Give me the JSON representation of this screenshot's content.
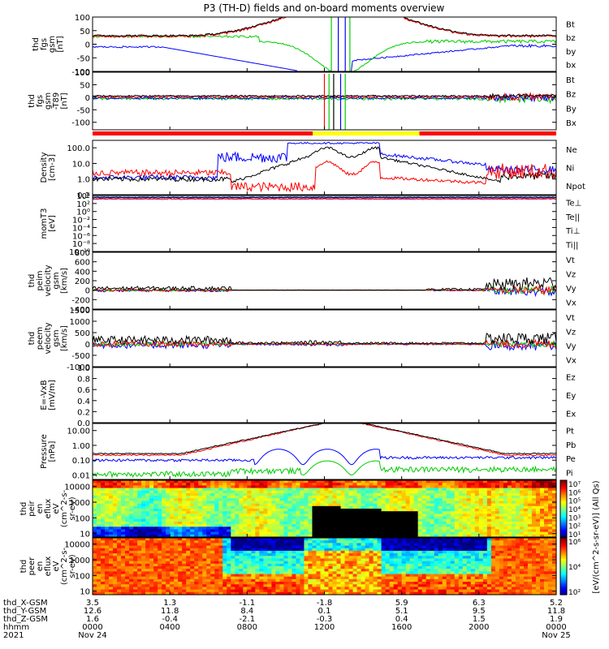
{
  "chart_data": {
    "title": "P3 (TH-D) fields and on-board moments overview",
    "type": "line",
    "panels": [
      {
        "ylabel": [
          "thd",
          "fgs",
          "gsm",
          "[nT]"
        ],
        "ylim": [
          -100,
          100
        ],
        "yticks": [
          {
            "v": 100,
            "l": "100"
          },
          {
            "v": 50,
            "l": "50"
          },
          {
            "v": 0,
            "l": "0"
          },
          {
            "v": -50,
            "l": "-50"
          },
          {
            "v": -100,
            "l": "-100"
          }
        ],
        "series": [
          {
            "name": "Bt",
            "color": "#000000"
          },
          {
            "name": "bz",
            "color": "#ff0000"
          },
          {
            "name": "by",
            "color": "#00cc00"
          },
          {
            "name": "bx",
            "color": "#0000ff"
          }
        ]
      },
      {
        "ylabel": [
          "thd",
          "fgs",
          "gsm",
          "-T89",
          "[nT]"
        ],
        "ylim": [
          -130,
          100
        ],
        "yticks": [
          {
            "v": 100,
            "l": "100"
          },
          {
            "v": 50,
            "l": "50"
          },
          {
            "v": 0,
            "l": "0"
          },
          {
            "v": -50,
            "l": "-50"
          },
          {
            "v": -100,
            "l": "-100"
          }
        ],
        "series": [
          {
            "name": "Bt",
            "color": "#000000"
          },
          {
            "name": "Bz",
            "color": "#ff0000"
          },
          {
            "name": "By",
            "color": "#00cc00"
          },
          {
            "name": "Bx",
            "color": "#0000ff"
          }
        ]
      },
      {
        "ylabel": [
          "Density",
          "[cm-3]"
        ],
        "scale": "log",
        "ylim": [
          0.1,
          300
        ],
        "yticks": [
          {
            "v": 100,
            "l": "100.0"
          },
          {
            "v": 10,
            "l": "10.0"
          },
          {
            "v": 1,
            "l": "1.0"
          },
          {
            "v": 0.1,
            "l": "0.1"
          }
        ],
        "series": [
          {
            "name": "Ne",
            "color": "#ff0000"
          },
          {
            "name": "Ni",
            "color": "#000000"
          },
          {
            "name": "Npot",
            "color": "#0000ff"
          }
        ]
      },
      {
        "ylabel": [
          "momT3",
          "[eV]"
        ],
        "scale": "log",
        "ylim": [
          1e-10,
          10000
        ],
        "yticks": [
          {
            "v": 10000,
            "l": "10⁴"
          },
          {
            "v": 100,
            "l": "10²"
          },
          {
            "v": 1,
            "l": "10⁰"
          },
          {
            "v": 0.01,
            "l": "10⁻²"
          },
          {
            "v": 0.0001,
            "l": "10⁻⁴"
          },
          {
            "v": 1e-06,
            "l": "10⁻⁶"
          },
          {
            "v": 1e-08,
            "l": "10⁻⁸"
          },
          {
            "v": 1e-10,
            "l": "10⁻¹⁰"
          }
        ],
        "series": [
          {
            "name": "Te⊥",
            "color": "#ff0000"
          },
          {
            "name": "Te||",
            "color": "#000000"
          },
          {
            "name": "Ti⊥",
            "color": "#00cc00"
          },
          {
            "name": "Ti||",
            "color": "#00cc00"
          }
        ]
      },
      {
        "ylabel": [
          "thd",
          "peim",
          "velocity",
          "gsm",
          "[km/s]"
        ],
        "ylim": [
          -400,
          800
        ],
        "yticks": [
          {
            "v": 800,
            "l": "800"
          },
          {
            "v": 600,
            "l": "600"
          },
          {
            "v": 400,
            "l": "400"
          },
          {
            "v": 200,
            "l": "200"
          },
          {
            "v": 0,
            "l": "0"
          },
          {
            "v": -200,
            "l": "-200"
          },
          {
            "v": -400,
            "l": "-400"
          }
        ],
        "series": [
          {
            "name": "Vt",
            "color": "#000000"
          },
          {
            "name": "Vz",
            "color": "#ff0000"
          },
          {
            "name": "Vy",
            "color": "#00cc00"
          },
          {
            "name": "Vx",
            "color": "#0000ff"
          }
        ]
      },
      {
        "ylabel": [
          "thd",
          "peem",
          "velocity",
          "gsm",
          "[km/s]"
        ],
        "ylim": [
          -1000,
          1500
        ],
        "yticks": [
          {
            "v": 1500,
            "l": "1500"
          },
          {
            "v": 1000,
            "l": "1000"
          },
          {
            "v": 500,
            "l": "500"
          },
          {
            "v": 0,
            "l": "0"
          },
          {
            "v": -500,
            "l": "-500"
          },
          {
            "v": -1000,
            "l": "-1000"
          }
        ],
        "series": [
          {
            "name": "Vt",
            "color": "#000000"
          },
          {
            "name": "Vz",
            "color": "#ff0000"
          },
          {
            "name": "Vy",
            "color": "#00cc00"
          },
          {
            "name": "Vx",
            "color": "#0000ff"
          }
        ]
      },
      {
        "ylabel": [
          "E=-VxB",
          "[mV/m]"
        ],
        "ylim": [
          0,
          1
        ],
        "yticks": [
          {
            "v": 1,
            "l": "1.0"
          },
          {
            "v": 0.8,
            "l": "0.8"
          },
          {
            "v": 0.6,
            "l": "0.6"
          },
          {
            "v": 0.4,
            "l": "0.4"
          },
          {
            "v": 0.2,
            "l": "0.2"
          },
          {
            "v": 0,
            "l": "0.0"
          }
        ],
        "series": [
          {
            "name": "Ez",
            "color": "#ff0000"
          },
          {
            "name": "Ey",
            "color": "#00cc00"
          },
          {
            "name": "Ex",
            "color": "#0000ff"
          }
        ]
      },
      {
        "ylabel": [
          "Pressure",
          "[nPa]"
        ],
        "scale": "log",
        "ylim": [
          0.005,
          30
        ],
        "yticks": [
          {
            "v": 10,
            "l": "10.00"
          },
          {
            "v": 1,
            "l": "1.00"
          },
          {
            "v": 0.1,
            "l": "0.10"
          },
          {
            "v": 0.01,
            "l": "0.01"
          }
        ],
        "series": [
          {
            "name": "Pt",
            "color": "#000000"
          },
          {
            "name": "Pb",
            "color": "#ff0000"
          },
          {
            "name": "Pe",
            "color": "#00cc00"
          },
          {
            "name": "Pi",
            "color": "#0000ff"
          }
        ]
      },
      {
        "type": "heatmap",
        "ylabel": [
          "thd",
          "peir",
          "en",
          "eflux",
          "eV",
          "(cm^2-s-",
          "sr-eV)"
        ],
        "scale": "log",
        "ylim": [
          6,
          25000
        ],
        "yticks": [
          {
            "v": 10000,
            "l": "10000"
          },
          {
            "v": 1000,
            "l": "1000"
          },
          {
            "v": 100,
            "l": "100"
          },
          {
            "v": 10,
            "l": "10"
          }
        ]
      },
      {
        "type": "heatmap",
        "ylabel": [
          "thd",
          "peer",
          "en",
          "eflux",
          "eV",
          "(cm^2-s-",
          "sr-eV)"
        ],
        "scale": "log",
        "ylim": [
          6,
          25000
        ],
        "yticks": [
          {
            "v": 10000,
            "l": "10000"
          },
          {
            "v": 1000,
            "l": "1000"
          },
          {
            "v": 100,
            "l": "100"
          },
          {
            "v": 10,
            "l": "10"
          }
        ]
      }
    ],
    "colorbar": {
      "label": "[eV/(cm^2-s-sr-eV)] (All Qs)",
      "ticks_top": [
        "10⁷",
        "10⁶",
        "10⁵",
        "10⁴",
        "10³",
        "10²",
        "10¹"
      ],
      "ticks_bottom": [
        "10⁶",
        "10⁴",
        "10²"
      ]
    },
    "mode_bar": [
      {
        "from": 0,
        "to": 0.5,
        "color": "#ff0000"
      },
      {
        "from": 0.5,
        "to": 1.0,
        "color": "#ffff00"
      },
      {
        "from": 1.0,
        "to": 2.0,
        "color": "#ff0000"
      }
    ],
    "xaxis": {
      "tick_fractions": [
        0,
        0.1667,
        0.3333,
        0.5,
        0.6667,
        0.8333,
        1.0
      ],
      "row_labels": [
        "thd_X-GSM",
        "thd_Y-GSM",
        "thd_Z-GSM",
        "hhmm",
        "2021"
      ],
      "rows": [
        [
          "3.5",
          "1.3",
          "-1.1",
          "-1.8",
          "5.9",
          "6.3",
          "5.2"
        ],
        [
          "12.6",
          "11.8",
          "8.4",
          "0.1",
          "5.1",
          "9.5",
          "11.8"
        ],
        [
          "1.6",
          "-0.4",
          "-2.1",
          "-0.3",
          "0.4",
          "1.5",
          "1.9"
        ],
        [
          "0000",
          "0400",
          "0800",
          "1200",
          "1600",
          "2000",
          "0000"
        ],
        [
          "Nov 24",
          "",
          "",
          "",
          "",
          "",
          "Nov 25"
        ]
      ]
    }
  }
}
